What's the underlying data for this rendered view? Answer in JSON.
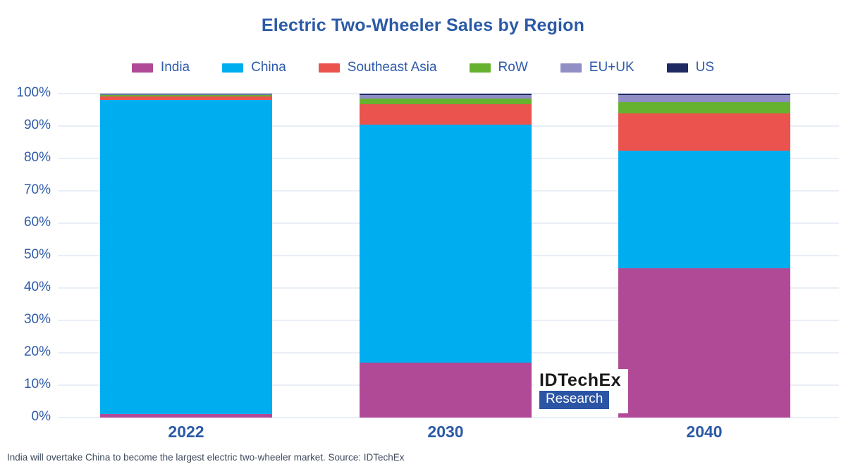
{
  "title": "Electric Two-Wheeler Sales by Region",
  "legend": {
    "position": "top",
    "items": [
      "India",
      "China",
      "Southeast Asia",
      "RoW",
      "EU+UK",
      "US"
    ]
  },
  "chart_data": {
    "type": "bar",
    "stacked": true,
    "unit": "%",
    "categories": [
      "2022",
      "2030",
      "2040"
    ],
    "series": [
      {
        "name": "India",
        "color": "#B04A96",
        "values": [
          1.0,
          17.0,
          46.0
        ]
      },
      {
        "name": "China",
        "color": "#00ADEF",
        "values": [
          97.0,
          73.5,
          36.5
        ]
      },
      {
        "name": "Southeast Asia",
        "color": "#EA534E",
        "values": [
          1.2,
          6.3,
          11.5
        ]
      },
      {
        "name": "RoW",
        "color": "#66B22E",
        "values": [
          0.3,
          1.6,
          3.5
        ]
      },
      {
        "name": "EU+UK",
        "color": "#908EC5",
        "values": [
          0.3,
          1.2,
          2.0
        ]
      },
      {
        "name": "US",
        "color": "#1F2A63",
        "values": [
          0.2,
          0.4,
          0.5
        ]
      }
    ],
    "title": "Electric Two-Wheeler Sales by Region",
    "xlabel": "",
    "ylabel": "",
    "ylim": [
      0,
      100
    ],
    "yticks": [
      "0%",
      "10%",
      "20%",
      "30%",
      "40%",
      "50%",
      "60%",
      "70%",
      "80%",
      "90%",
      "100%"
    ],
    "grid": "horizontal",
    "colors": {
      "title_text": "#2B5AA6",
      "axis_text": "#2E5BA9",
      "gridline": "#E9EEF7",
      "background": "#ffffff"
    }
  },
  "logo": {
    "line1": "IDTechEx",
    "line2": "Research"
  },
  "footer": {
    "text": "India will overtake China to become the largest electric two-wheeler market. Source: IDTechEx"
  }
}
